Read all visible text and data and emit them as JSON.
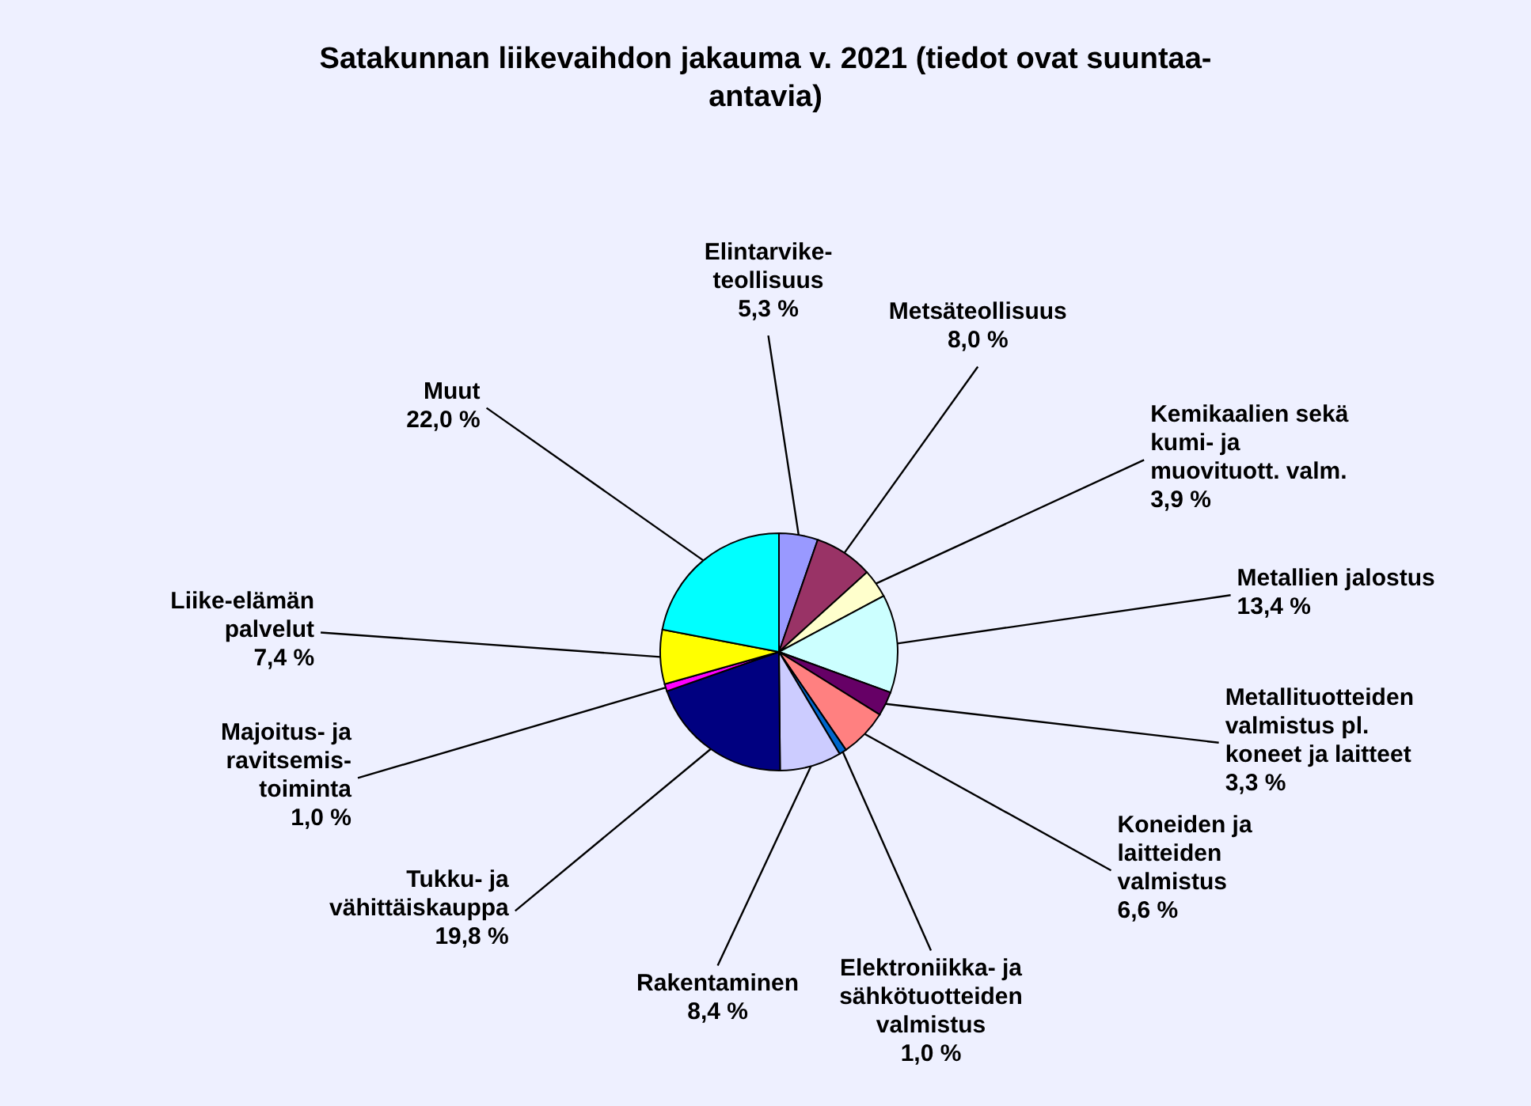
{
  "chart_data": {
    "type": "pie",
    "title": "Satakunnan liikevaihdon jakauma v. 2021 (tiedot ovat suuntaa-\nantavia)",
    "categories": [
      "Elintarvike-\nteollisuus",
      "Metsäteollisuus",
      "Kemikaalien sekä\nkumi- ja\nmuovituott. valm.",
      "Metallien jalostus",
      "Metallituotteiden\nvalmistus pl.\nkoneet ja laitteet",
      "Koneiden ja\nlaitteiden\nvalmistus",
      "Elektroniikka- ja\nsähkötuotteiden\nvalmistus",
      "Rakentaminen",
      "Tukku- ja\nvähittäiskauppa",
      "Majoitus- ja\nravitsemis-\ntoiminta",
      "Liike-elämän\npalvelut",
      "Muut"
    ],
    "values": [
      5.3,
      8.0,
      3.9,
      13.4,
      3.3,
      6.6,
      1.0,
      8.4,
      19.8,
      1.0,
      7.4,
      22.0
    ],
    "value_labels": [
      "5,3 %",
      "8,0 %",
      "3,9 %",
      "13,4 %",
      "3,3 %",
      "6,6 %",
      "1,0 %",
      "8,4 %",
      "19,8 %",
      "1,0 %",
      "7,4 %",
      "22,0 %"
    ],
    "colors": [
      "#9999ff",
      "#993366",
      "#ffffcc",
      "#ccffff",
      "#660066",
      "#ff8080",
      "#0066cc",
      "#ccccff",
      "#000080",
      "#ff00ff",
      "#ffff00",
      "#00ffff"
    ]
  }
}
